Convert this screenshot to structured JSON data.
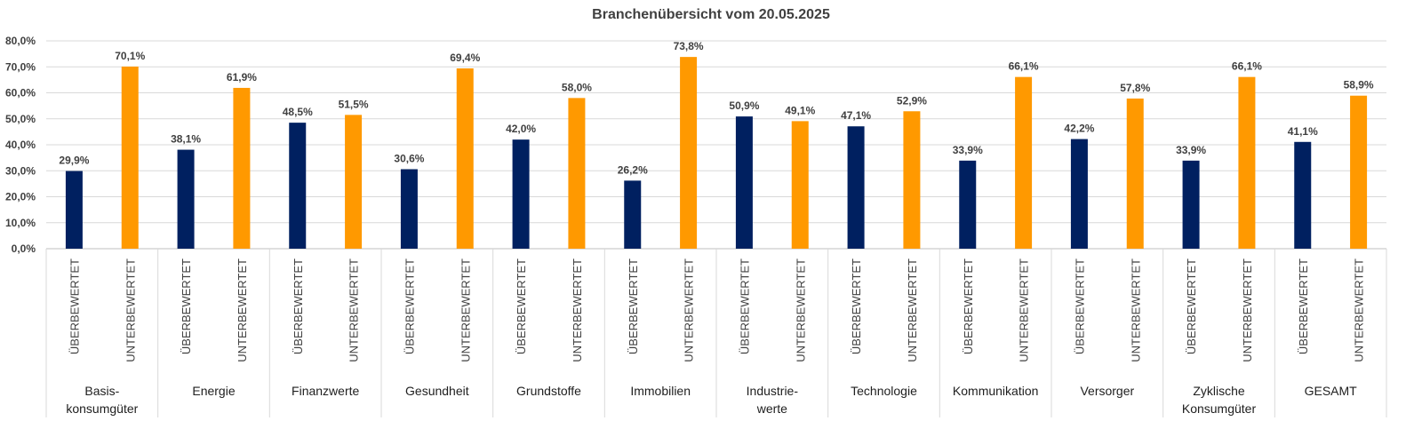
{
  "chart_data": {
    "type": "bar",
    "title": "Branchenübersicht vom 20.05.2025",
    "xlabel": "",
    "ylabel": "",
    "ylim": [
      0,
      80
    ],
    "y_ticks": [
      "0,0%",
      "10,0%",
      "20,0%",
      "30,0%",
      "40,0%",
      "50,0%",
      "60,0%",
      "70,0%",
      "80,0%"
    ],
    "grid": true,
    "series": [
      {
        "name": "ÜBERBEWERTET",
        "color": "#002060",
        "values": [
          29.9,
          38.1,
          48.5,
          30.6,
          42.0,
          26.2,
          50.9,
          47.1,
          33.9,
          42.2,
          33.9,
          41.1
        ],
        "labels": [
          "29,9%",
          "38,1%",
          "48,5%",
          "30,6%",
          "42,0%",
          "26,2%",
          "50,9%",
          "47,1%",
          "33,9%",
          "42,2%",
          "33,9%",
          "41,1%"
        ]
      },
      {
        "name": "UNTERBEWERTET",
        "color": "#FF9900",
        "values": [
          70.1,
          61.9,
          51.5,
          69.4,
          58.0,
          73.8,
          49.1,
          52.9,
          66.1,
          57.8,
          66.1,
          58.9
        ],
        "labels": [
          "70,1%",
          "61,9%",
          "51,5%",
          "69,4%",
          "58,0%",
          "73,8%",
          "49,1%",
          "52,9%",
          "66,1%",
          "57,8%",
          "66,1%",
          "58,9%"
        ]
      }
    ],
    "groups": [
      [
        "Basis-",
        "konsumgüter"
      ],
      [
        "Energie"
      ],
      [
        "Finanzwerte"
      ],
      [
        "Gesundheit"
      ],
      [
        "Grundstoffe"
      ],
      [
        "Immobilien"
      ],
      [
        "Industrie-",
        "werte"
      ],
      [
        "Technologie"
      ],
      [
        "Kommunikation"
      ],
      [
        "Versorger"
      ],
      [
        "Zyklische",
        "Konsumgüter"
      ],
      [
        "GESAMT"
      ]
    ]
  }
}
